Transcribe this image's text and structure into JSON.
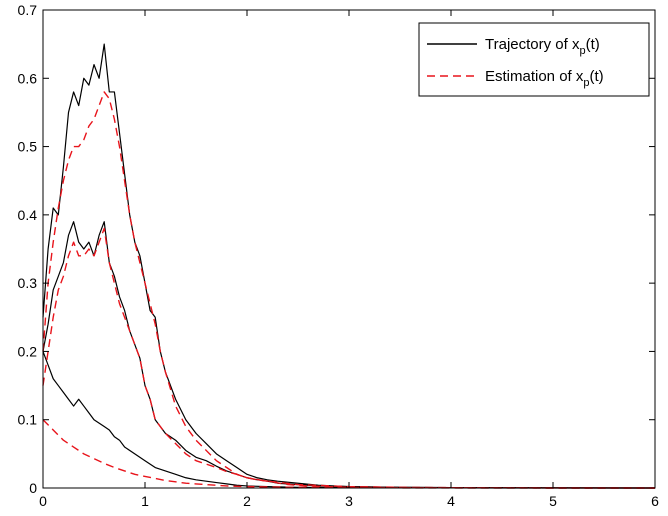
{
  "chart_data": {
    "type": "line",
    "title": "",
    "xlabel": "",
    "ylabel": "",
    "xlim": [
      0,
      6
    ],
    "ylim": [
      0,
      0.7
    ],
    "xticks": [
      0,
      1,
      2,
      3,
      4,
      5,
      6
    ],
    "yticks": [
      0,
      0.1,
      0.2,
      0.3,
      0.4,
      0.5,
      0.6,
      0.7
    ],
    "xtick_labels": [
      "0",
      "1",
      "2",
      "3",
      "4",
      "5",
      "6"
    ],
    "ytick_labels": [
      "0",
      "0.1",
      "0.2",
      "0.3",
      "0.4",
      "0.5",
      "0.6",
      "0.7"
    ],
    "grid": false,
    "legend_position": "top-right",
    "legend": [
      {
        "label_main": "Trajectory of x",
        "label_sub": "p",
        "label_tail": "(t)",
        "style": "solid",
        "color": "#000000"
      },
      {
        "label_main": "Estimation of x",
        "label_sub": "p",
        "label_tail": "(t)",
        "style": "dashed",
        "color": "#e8141b"
      }
    ],
    "series": [
      {
        "style": "solid",
        "color": "#000000",
        "x": [
          0,
          0.05,
          0.1,
          0.15,
          0.2,
          0.25,
          0.3,
          0.35,
          0.4,
          0.45,
          0.5,
          0.55,
          0.6,
          0.65,
          0.7,
          0.75,
          0.8,
          0.85,
          0.9,
          0.95,
          1.0,
          1.05,
          1.1,
          1.15,
          1.2,
          1.3,
          1.4,
          1.5,
          1.6,
          1.7,
          1.8,
          1.9,
          2.0,
          2.1,
          2.2,
          2.3,
          2.5,
          2.7,
          3.0,
          3.5,
          4.0,
          5.0,
          6.0
        ],
        "y": [
          0.25,
          0.35,
          0.41,
          0.4,
          0.47,
          0.55,
          0.58,
          0.56,
          0.6,
          0.59,
          0.62,
          0.6,
          0.65,
          0.58,
          0.58,
          0.52,
          0.46,
          0.4,
          0.36,
          0.34,
          0.3,
          0.26,
          0.25,
          0.2,
          0.17,
          0.13,
          0.1,
          0.08,
          0.065,
          0.05,
          0.04,
          0.03,
          0.02,
          0.015,
          0.012,
          0.01,
          0.007,
          0.004,
          0.002,
          0.001,
          0.0005,
          0.0002,
          0
        ]
      },
      {
        "style": "solid",
        "color": "#000000",
        "x": [
          0,
          0.05,
          0.1,
          0.15,
          0.2,
          0.25,
          0.3,
          0.35,
          0.4,
          0.45,
          0.5,
          0.55,
          0.6,
          0.65,
          0.7,
          0.75,
          0.8,
          0.85,
          0.9,
          0.95,
          1.0,
          1.05,
          1.1,
          1.2,
          1.3,
          1.4,
          1.5,
          1.6,
          1.7,
          1.8,
          1.9,
          2.0,
          2.1,
          2.2,
          2.3,
          2.5,
          2.7,
          3.0,
          3.5,
          4.0,
          5.0,
          6.0
        ],
        "y": [
          0.2,
          0.24,
          0.29,
          0.31,
          0.33,
          0.37,
          0.39,
          0.36,
          0.35,
          0.36,
          0.34,
          0.37,
          0.39,
          0.33,
          0.31,
          0.28,
          0.26,
          0.23,
          0.21,
          0.19,
          0.15,
          0.13,
          0.1,
          0.08,
          0.07,
          0.055,
          0.045,
          0.04,
          0.032,
          0.025,
          0.02,
          0.015,
          0.012,
          0.01,
          0.007,
          0.005,
          0.003,
          0.002,
          0.001,
          0.0005,
          0.0002,
          0
        ]
      },
      {
        "style": "solid",
        "color": "#000000",
        "x": [
          0,
          0.05,
          0.1,
          0.15,
          0.2,
          0.25,
          0.3,
          0.35,
          0.4,
          0.45,
          0.5,
          0.55,
          0.6,
          0.65,
          0.7,
          0.75,
          0.8,
          0.9,
          1.0,
          1.1,
          1.2,
          1.3,
          1.4,
          1.5,
          1.6,
          1.7,
          1.8,
          1.9,
          2.0,
          2.2,
          2.5,
          3.0,
          3.5,
          4.0,
          5.0,
          6.0
        ],
        "y": [
          0.2,
          0.18,
          0.16,
          0.15,
          0.14,
          0.13,
          0.12,
          0.13,
          0.12,
          0.11,
          0.1,
          0.095,
          0.09,
          0.085,
          0.075,
          0.07,
          0.06,
          0.05,
          0.04,
          0.03,
          0.025,
          0.02,
          0.015,
          0.012,
          0.01,
          0.008,
          0.006,
          0.004,
          0.003,
          0.002,
          0.001,
          0.0005,
          0.0003,
          0.0001,
          0,
          0
        ]
      },
      {
        "style": "dashed",
        "color": "#e8141b",
        "x": [
          0,
          0.05,
          0.1,
          0.15,
          0.2,
          0.25,
          0.3,
          0.35,
          0.4,
          0.45,
          0.5,
          0.55,
          0.6,
          0.65,
          0.7,
          0.75,
          0.8,
          0.85,
          0.9,
          0.95,
          1.0,
          1.05,
          1.1,
          1.15,
          1.2,
          1.3,
          1.4,
          1.5,
          1.6,
          1.7,
          1.8,
          1.9,
          2.0,
          2.1,
          2.2,
          2.4,
          2.6,
          3.0,
          3.5,
          4.0,
          5.0,
          6.0
        ],
        "y": [
          0.2,
          0.3,
          0.36,
          0.41,
          0.45,
          0.48,
          0.5,
          0.5,
          0.51,
          0.53,
          0.54,
          0.56,
          0.58,
          0.57,
          0.54,
          0.5,
          0.45,
          0.4,
          0.36,
          0.33,
          0.3,
          0.27,
          0.24,
          0.2,
          0.17,
          0.12,
          0.09,
          0.07,
          0.055,
          0.04,
          0.03,
          0.02,
          0.015,
          0.012,
          0.01,
          0.005,
          0.003,
          0.001,
          0.0005,
          0.0002,
          0,
          0
        ]
      },
      {
        "style": "dashed",
        "color": "#e8141b",
        "x": [
          0,
          0.05,
          0.1,
          0.15,
          0.2,
          0.25,
          0.3,
          0.35,
          0.4,
          0.45,
          0.5,
          0.55,
          0.6,
          0.65,
          0.7,
          0.75,
          0.8,
          0.85,
          0.9,
          0.95,
          1.0,
          1.05,
          1.1,
          1.2,
          1.3,
          1.4,
          1.5,
          1.6,
          1.7,
          1.8,
          1.9,
          2.0,
          2.2,
          2.5,
          3.0,
          3.5,
          4.0,
          5.0,
          6.0
        ],
        "y": [
          0.15,
          0.2,
          0.25,
          0.29,
          0.31,
          0.34,
          0.36,
          0.34,
          0.34,
          0.35,
          0.34,
          0.36,
          0.38,
          0.33,
          0.3,
          0.27,
          0.25,
          0.23,
          0.21,
          0.19,
          0.15,
          0.13,
          0.1,
          0.08,
          0.065,
          0.05,
          0.04,
          0.035,
          0.03,
          0.024,
          0.02,
          0.015,
          0.01,
          0.005,
          0.002,
          0.001,
          0.0005,
          0.0001,
          0
        ]
      },
      {
        "style": "dashed",
        "color": "#e8141b",
        "x": [
          0,
          0.1,
          0.2,
          0.3,
          0.4,
          0.5,
          0.6,
          0.7,
          0.8,
          0.9,
          1.0,
          1.1,
          1.2,
          1.3,
          1.4,
          1.5,
          1.6,
          1.7,
          1.8,
          1.9,
          2.0,
          2.2,
          2.5,
          3.0,
          3.5,
          4.0,
          5.0,
          6.0
        ],
        "y": [
          0.1,
          0.085,
          0.07,
          0.06,
          0.05,
          0.043,
          0.036,
          0.03,
          0.025,
          0.02,
          0.017,
          0.014,
          0.011,
          0.009,
          0.007,
          0.006,
          0.005,
          0.004,
          0.003,
          0.0025,
          0.002,
          0.0015,
          0.001,
          0.0005,
          0.0002,
          0.0001,
          0,
          0
        ]
      }
    ]
  }
}
